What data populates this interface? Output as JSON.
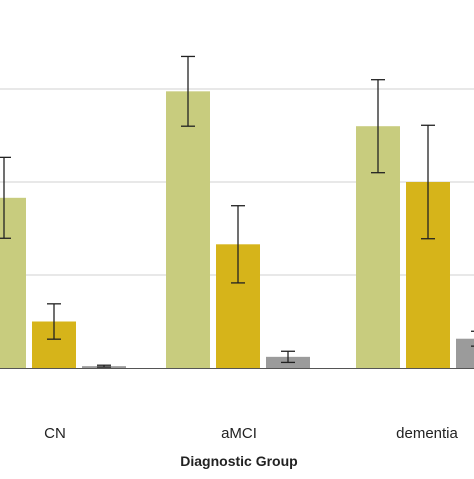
{
  "chart_data": {
    "type": "bar",
    "title": "",
    "xlabel": "Diagnostic Group",
    "ylabel": "",
    "categories": [
      "CN",
      "aMCI",
      "dementia"
    ],
    "series": [
      {
        "color": "#c8cc7e",
        "values": [
          0.366,
          0.595,
          0.52
        ],
        "error": [
          0.087,
          0.075,
          0.1
        ]
      },
      {
        "color": "#d6b41a",
        "values": [
          0.1,
          0.266,
          0.4
        ],
        "error": [
          0.038,
          0.083,
          0.122
        ]
      },
      {
        "color": "#9b9b9b",
        "values": [
          0.004,
          0.024,
          0.063
        ],
        "error": [
          0.002,
          0.012,
          0.016
        ]
      }
    ],
    "ylim": [
      0,
      0.7
    ],
    "yticks": [
      0,
      0.2,
      0.4,
      0.6
    ],
    "grid": true,
    "error_bars": true
  }
}
